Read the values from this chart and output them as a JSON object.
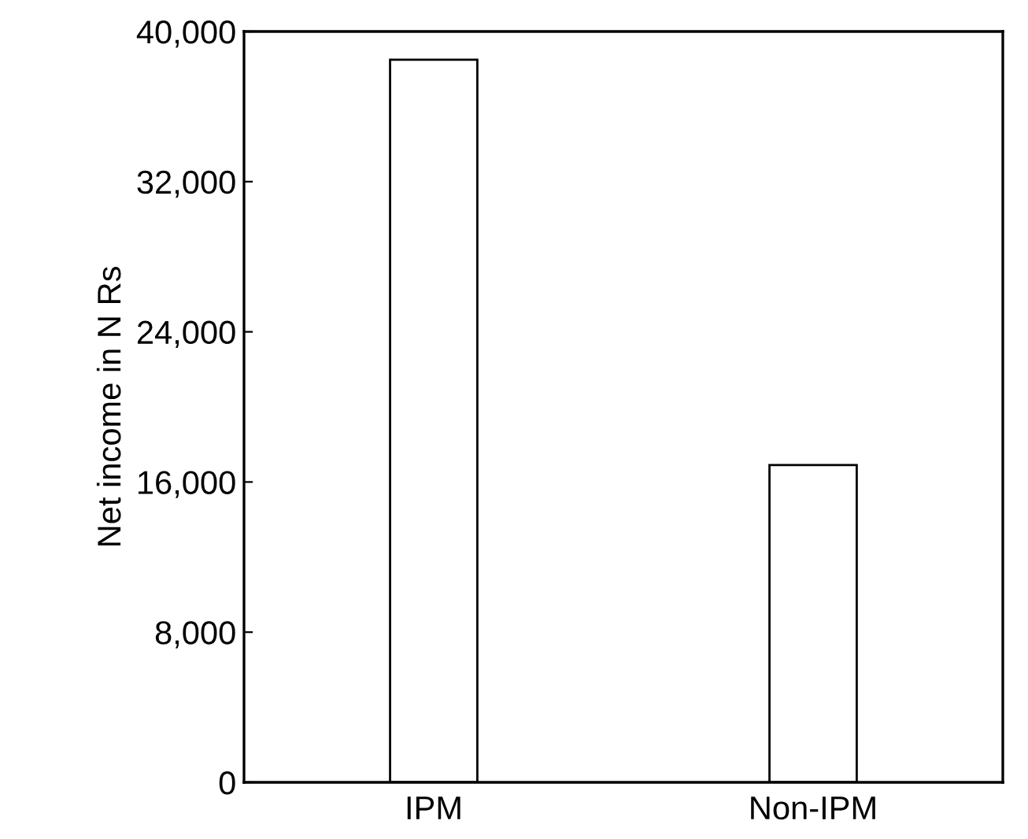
{
  "chart_data": {
    "type": "bar",
    "ylabel": "Net income in N Rs",
    "categories": [
      "IPM",
      "Non-IPM"
    ],
    "values": [
      38500,
      16900
    ],
    "color": "#ffffff",
    "ylim": [
      0,
      40000
    ],
    "yticks": [
      {
        "value": 0,
        "label": "0"
      },
      {
        "value": 8000,
        "label": "8,000"
      },
      {
        "value": 16000,
        "label": "16,000"
      },
      {
        "value": 24000,
        "label": "24,000"
      },
      {
        "value": 32000,
        "label": "32,000"
      },
      {
        "value": 40000,
        "label": "40,000"
      }
    ],
    "grid": false
  }
}
